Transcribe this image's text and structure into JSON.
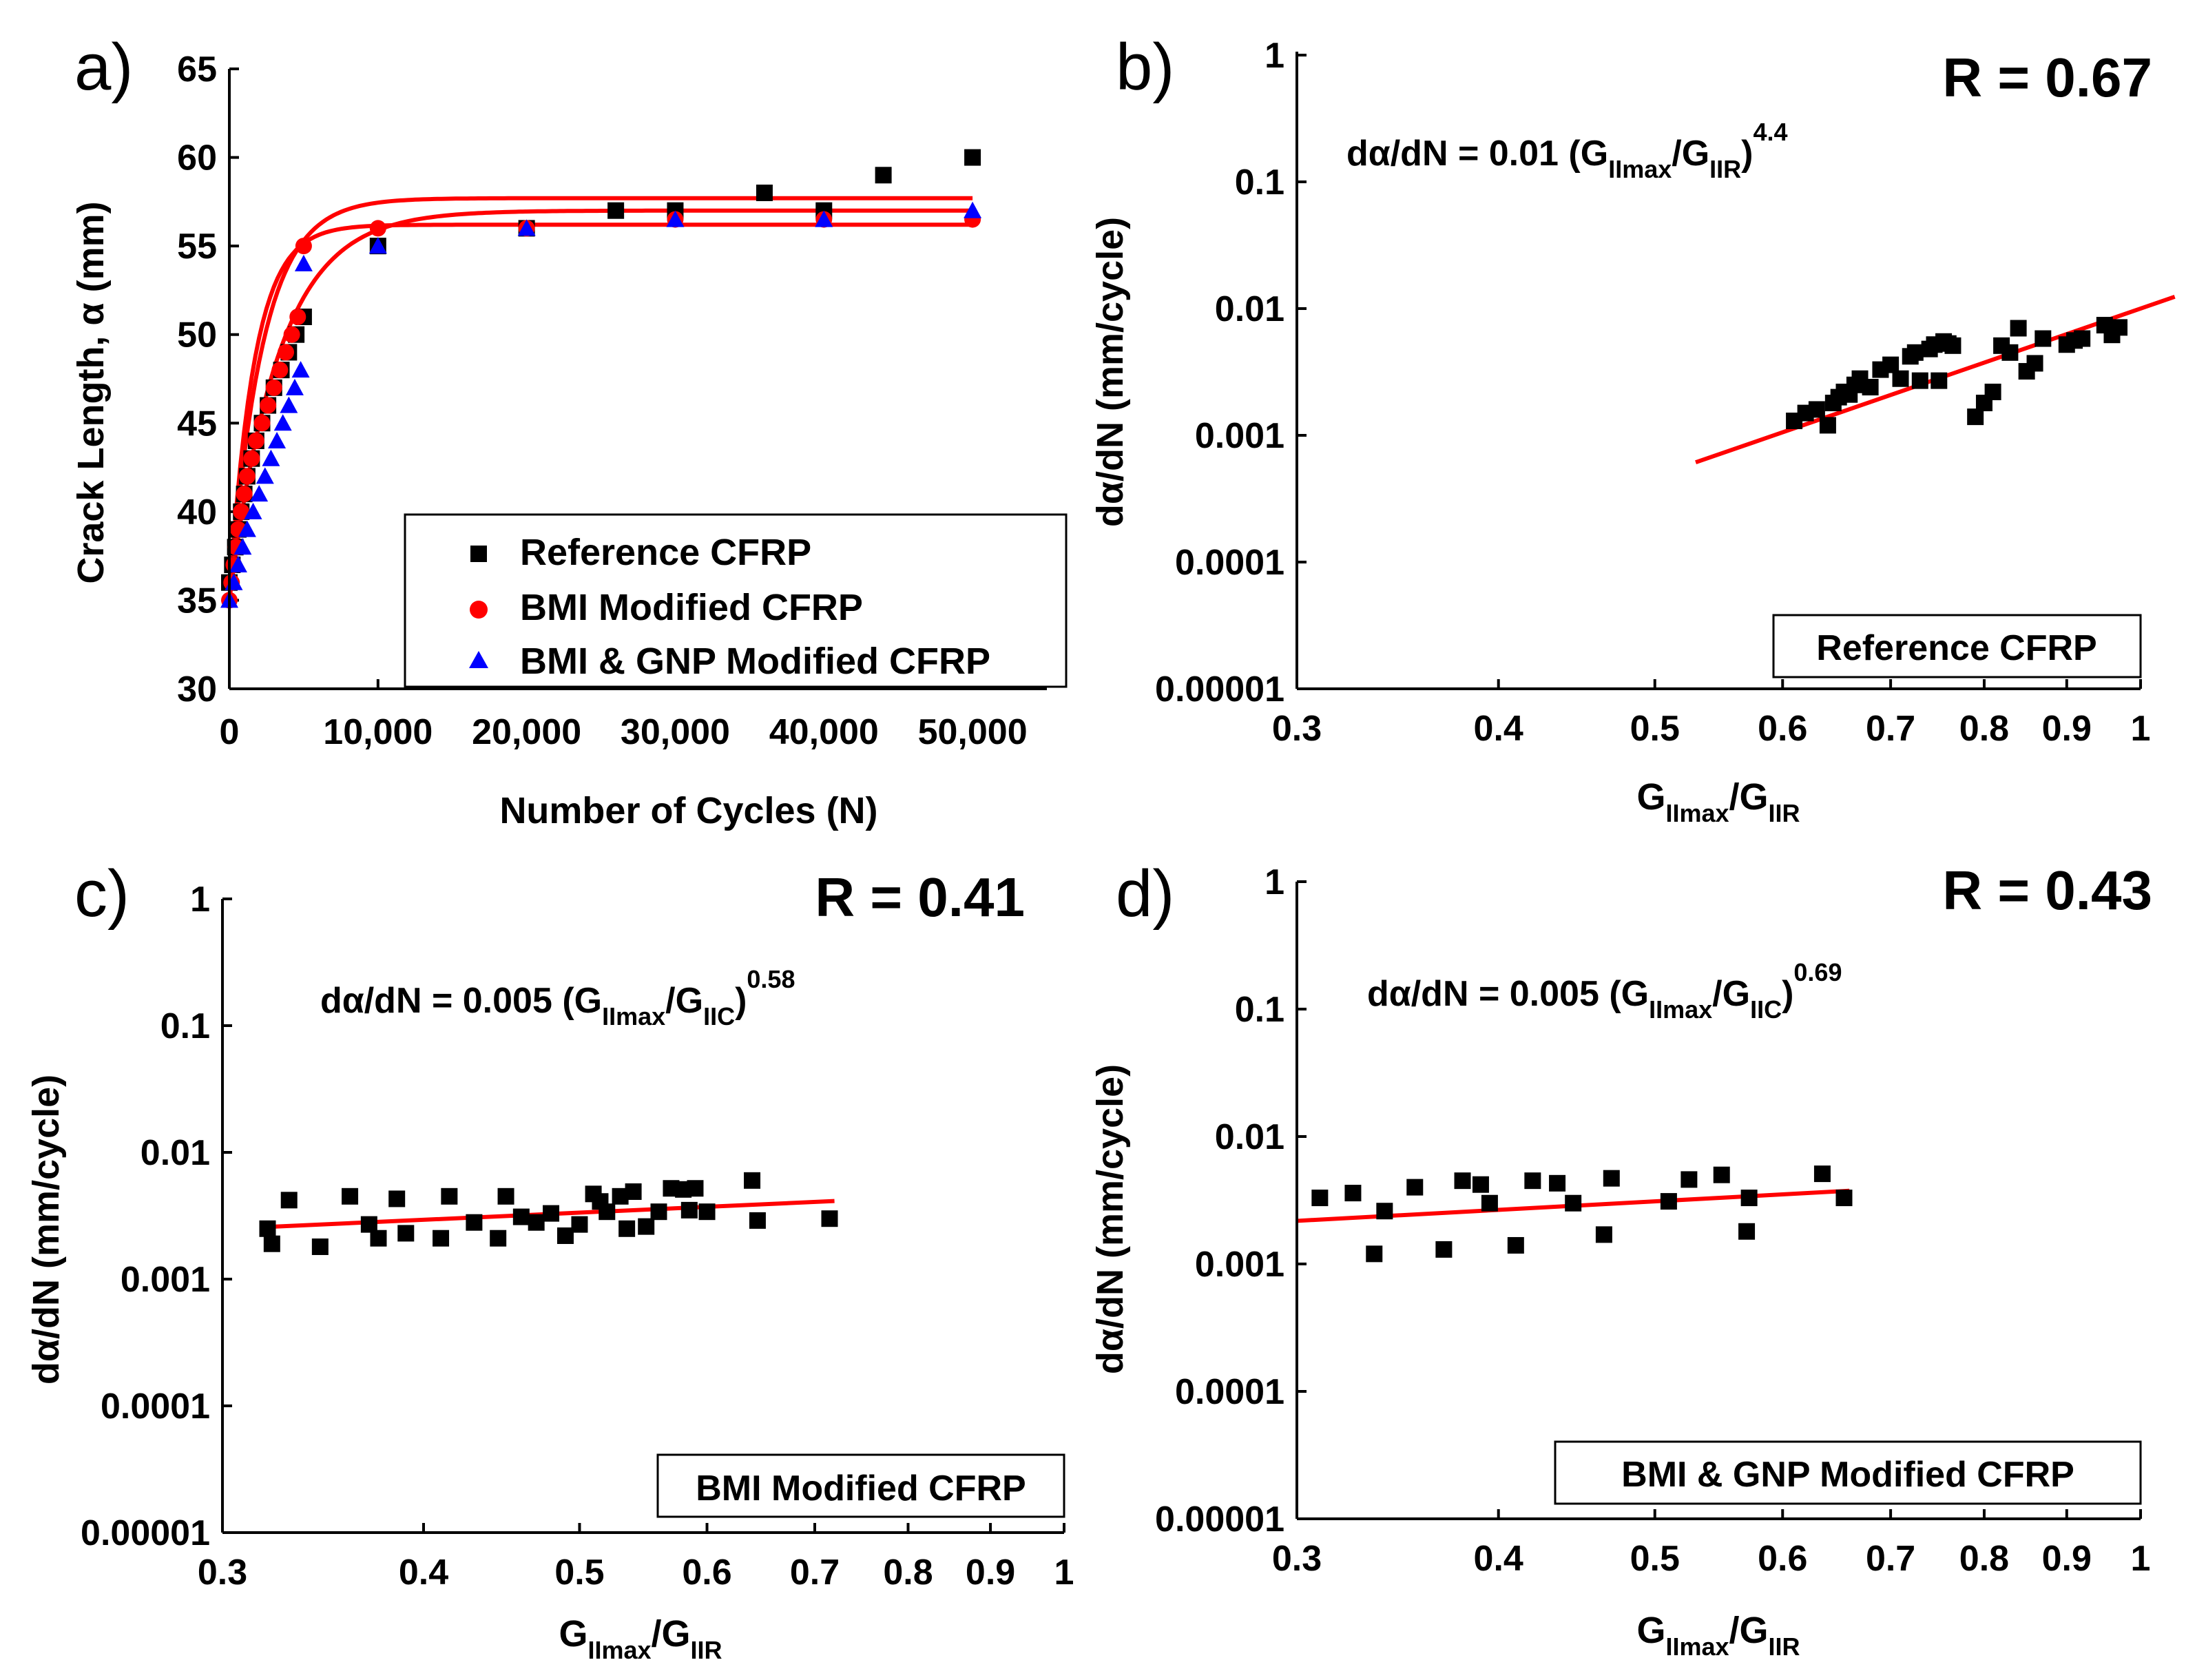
{
  "chart_data": [
    {
      "id": "a",
      "type": "scatter",
      "panel_label": "a)",
      "xlabel": "Number of Cycles (N)",
      "ylabel": "Crack Length, α (mm)",
      "xlim": [
        0,
        55000
      ],
      "ylim": [
        30,
        65
      ],
      "xticks": [
        0,
        10000,
        20000,
        30000,
        40000,
        50000
      ],
      "xtick_labels": [
        "0",
        "10,000",
        "20,000",
        "30,000",
        "40,000",
        "50,000"
      ],
      "yticks": [
        30,
        35,
        40,
        45,
        50,
        55,
        60,
        65
      ],
      "ytick_labels": [
        "30",
        "35",
        "40",
        "45",
        "50",
        "55",
        "60",
        "65"
      ],
      "legend": [
        {
          "label": "Reference CFRP",
          "marker": "square",
          "color": "#000000"
        },
        {
          "label": "BMI Modified CFRP",
          "marker": "circle",
          "color": "#ff0000"
        },
        {
          "label": "BMI & GNP Modified CFRP",
          "marker": "triangle",
          "color": "#0000ff"
        }
      ],
      "series": [
        {
          "name": "Reference CFRP",
          "marker": "square",
          "color": "#000000",
          "x": [
            0,
            200,
            400,
            600,
            800,
            1000,
            1200,
            1500,
            1800,
            2200,
            2600,
            3000,
            3500,
            4000,
            4500,
            5000,
            10000,
            20000,
            26000,
            30000,
            36000,
            40000,
            44000,
            50000
          ],
          "y": [
            36,
            37,
            38,
            39,
            40,
            41,
            42,
            43,
            44,
            45,
            46,
            47,
            48,
            49,
            50,
            51,
            55,
            56,
            57,
            57,
            58,
            57,
            59,
            60
          ]
        },
        {
          "name": "BMI Modified CFRP",
          "marker": "circle",
          "color": "#ff0000",
          "x": [
            0,
            150,
            300,
            450,
            600,
            800,
            1000,
            1200,
            1500,
            1800,
            2200,
            2600,
            3000,
            3400,
            3800,
            4200,
            4600,
            5000,
            10000,
            20000,
            30000,
            40000,
            50000
          ],
          "y": [
            35,
            36,
            37,
            38,
            39,
            40,
            41,
            42,
            43,
            44,
            45,
            46,
            47,
            48,
            49,
            50,
            51,
            55,
            56,
            56,
            56.5,
            56.5,
            56.5
          ]
        },
        {
          "name": "BMI & GNP Modified CFRP",
          "marker": "triangle",
          "color": "#0000ff",
          "x": [
            0,
            300,
            600,
            900,
            1200,
            1600,
            2000,
            2400,
            2800,
            3200,
            3600,
            4000,
            4400,
            4800,
            5000,
            10000,
            20000,
            30000,
            40000,
            50000
          ],
          "y": [
            35,
            36,
            37,
            38,
            39,
            40,
            41,
            42,
            43,
            44,
            45,
            46,
            47,
            48,
            54,
            55,
            56,
            56.5,
            56.5,
            57
          ]
        }
      ],
      "fit_curves": [
        {
          "a0": 35,
          "ainf": 57.7,
          "k": 0.00045
        },
        {
          "a0": 35,
          "ainf": 56.2,
          "k": 0.0006
        },
        {
          "a0": 35,
          "ainf": 57.0,
          "k": 0.0003
        }
      ]
    },
    {
      "id": "b",
      "type": "scatter",
      "panel_label": "b)",
      "xscale": "log",
      "yscale": "log",
      "xlim": [
        0.3,
        1
      ],
      "ylim": [
        1e-05,
        1
      ],
      "xtick_labels": [
        "0.3",
        "0.4",
        "0.5",
        "0.6",
        "0.7",
        "0.8",
        "0.9",
        "1"
      ],
      "xticks": [
        0.3,
        0.4,
        0.5,
        0.6,
        0.7,
        0.8,
        0.9,
        1
      ],
      "yticks": [
        1e-05,
        0.0001,
        0.001,
        0.01,
        0.1,
        1
      ],
      "ytick_labels": [
        "0.00001",
        "0.0001",
        "0.001",
        "0.01",
        "0.1",
        "1"
      ],
      "ylabel": "dα/dN (mm/cycle)",
      "xlabel_main": "G",
      "xlabel_sub1": "IImax",
      "xlabel_mid": "/G",
      "xlabel_sub2": "IIR",
      "r_label": "R = 0.67",
      "eq_main": "dα/dN = 0.01 (G",
      "eq_sub1": "IImax",
      "eq_mid": "/G",
      "eq_sub2": "IIR",
      "eq_close": ")",
      "eq_exp": "4.4",
      "box_label": "Reference CFRP",
      "fit": {
        "coef": 0.01,
        "exp": 4.4,
        "xrange": [
          0.53,
          1.05
        ]
      },
      "series": [
        {
          "name": "Reference CFRP",
          "marker": "square",
          "color": "#000000",
          "x": [
            0.61,
            0.62,
            0.63,
            0.64,
            0.645,
            0.65,
            0.655,
            0.66,
            0.665,
            0.67,
            0.68,
            0.69,
            0.7,
            0.71,
            0.72,
            0.725,
            0.73,
            0.74,
            0.745,
            0.75,
            0.755,
            0.76,
            0.765,
            0.79,
            0.8,
            0.81,
            0.82,
            0.83,
            0.84,
            0.85,
            0.86,
            0.87,
            0.9,
            0.91,
            0.92,
            0.95,
            0.96,
            0.97
          ],
          "y": [
            0.0013,
            0.0015,
            0.0016,
            0.0012,
            0.0018,
            0.002,
            0.0022,
            0.0021,
            0.0025,
            0.0028,
            0.0024,
            0.0033,
            0.0036,
            0.0028,
            0.0042,
            0.0045,
            0.0027,
            0.0048,
            0.0052,
            0.0027,
            0.0055,
            0.0053,
            0.0051,
            0.0014,
            0.0018,
            0.0022,
            0.0051,
            0.0045,
            0.007,
            0.0032,
            0.0037,
            0.0058,
            0.0052,
            0.0056,
            0.0058,
            0.0074,
            0.0062,
            0.0071
          ]
        }
      ]
    },
    {
      "id": "c",
      "type": "scatter",
      "panel_label": "c)",
      "xscale": "log",
      "yscale": "log",
      "xlim": [
        0.3,
        1
      ],
      "ylim": [
        1e-05,
        1
      ],
      "xticks": [
        0.3,
        0.4,
        0.5,
        0.6,
        0.7,
        0.8,
        0.9,
        1
      ],
      "xtick_labels": [
        "0.3",
        "0.4",
        "0.5",
        "0.6",
        "0.7",
        "0.8",
        "0.9",
        "1"
      ],
      "yticks": [
        1e-05,
        0.0001,
        0.001,
        0.01,
        0.1,
        1
      ],
      "ytick_labels": [
        "0.00001",
        "0.0001",
        "0.001",
        "0.01",
        "0.1",
        "1"
      ],
      "ylabel": "dα/dN (mm/cycle)",
      "xlabel_main": "G",
      "xlabel_sub1": "IImax",
      "xlabel_mid": "/G",
      "xlabel_sub2": "IIR",
      "r_label": "R = 0.41",
      "eq_main": "dα/dN = 0.005 (G",
      "eq_sub1": "IImax",
      "eq_mid": "/G",
      "eq_sub2": "IIC",
      "eq_close": ")",
      "eq_exp": "0.58",
      "box_label": "BMI Modified CFRP",
      "fit": {
        "coef": 0.005,
        "exp": 0.58,
        "xrange": [
          0.32,
          0.72
        ]
      },
      "series": [
        {
          "name": "BMI Modified CFRP",
          "marker": "square",
          "color": "#000000",
          "x": [
            0.32,
            0.322,
            0.33,
            0.345,
            0.36,
            0.37,
            0.375,
            0.385,
            0.39,
            0.41,
            0.415,
            0.43,
            0.445,
            0.45,
            0.46,
            0.47,
            0.48,
            0.49,
            0.5,
            0.51,
            0.515,
            0.52,
            0.53,
            0.535,
            0.54,
            0.55,
            0.56,
            0.57,
            0.58,
            0.585,
            0.59,
            0.6,
            0.64,
            0.645,
            0.715
          ],
          "y": [
            0.0025,
            0.0019,
            0.0042,
            0.0018,
            0.0045,
            0.0027,
            0.0021,
            0.0043,
            0.0023,
            0.0021,
            0.0045,
            0.0028,
            0.0021,
            0.0045,
            0.0031,
            0.0028,
            0.0033,
            0.0022,
            0.0027,
            0.0047,
            0.0041,
            0.0034,
            0.0045,
            0.0025,
            0.0049,
            0.0026,
            0.0034,
            0.0052,
            0.0051,
            0.0035,
            0.0052,
            0.0034,
            0.006,
            0.0029,
            0.003
          ]
        }
      ]
    },
    {
      "id": "d",
      "type": "scatter",
      "panel_label": "d)",
      "xscale": "log",
      "yscale": "log",
      "xlim": [
        0.3,
        1
      ],
      "ylim": [
        1e-05,
        1
      ],
      "xticks": [
        0.3,
        0.4,
        0.5,
        0.6,
        0.7,
        0.8,
        0.9,
        1
      ],
      "xtick_labels": [
        "0.3",
        "0.4",
        "0.5",
        "0.6",
        "0.7",
        "0.8",
        "0.9",
        "1"
      ],
      "yticks": [
        1e-05,
        0.0001,
        0.001,
        0.01,
        0.1,
        1
      ],
      "ytick_labels": [
        "0.00001",
        "0.0001",
        "0.001",
        "0.01",
        "0.1",
        "1"
      ],
      "ylabel": "dα/dN (mm/cycle)",
      "xlabel_main": "G",
      "xlabel_sub1": "IImax",
      "xlabel_mid": "/G",
      "xlabel_sub2": "IIR",
      "r_label": "R = 0.43",
      "eq_main": "dα/dN = 0.005 (G",
      "eq_sub1": "IImax",
      "eq_mid": "/G",
      "eq_sub2": "IIC",
      "eq_close": ")",
      "eq_exp": "0.69",
      "box_label": "BMI & GNP Modified CFRP",
      "fit": {
        "coef": 0.005,
        "exp": 0.69,
        "xrange": [
          0.3,
          0.66
        ]
      },
      "series": [
        {
          "name": "BMI & GNP Modified CFRP",
          "marker": "square",
          "color": "#000000",
          "x": [
            0.31,
            0.325,
            0.335,
            0.34,
            0.355,
            0.37,
            0.38,
            0.39,
            0.395,
            0.41,
            0.42,
            0.435,
            0.445,
            0.465,
            0.47,
            0.51,
            0.525,
            0.55,
            0.57,
            0.572,
            0.635,
            0.655
          ],
          "y": [
            0.0033,
            0.0036,
            0.0012,
            0.0026,
            0.004,
            0.0013,
            0.0045,
            0.0042,
            0.003,
            0.0014,
            0.0045,
            0.0043,
            0.003,
            0.0017,
            0.0047,
            0.0031,
            0.0046,
            0.005,
            0.0018,
            0.0033,
            0.0051,
            0.0033
          ]
        }
      ]
    }
  ]
}
